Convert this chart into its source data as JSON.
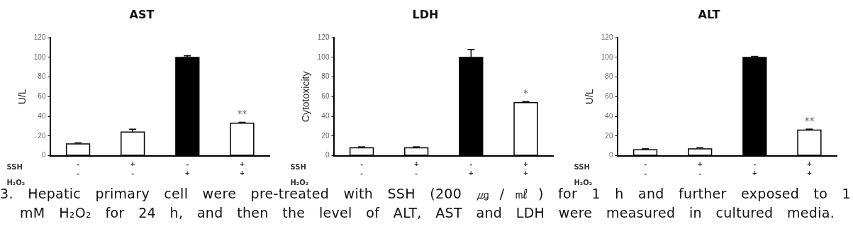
{
  "chart_data": [
    {
      "type": "bar",
      "title": "AST",
      "ylabel": "U/L",
      "categories": [
        "-\n-",
        "+\n-",
        "-\n+",
        "+\n+"
      ],
      "values": [
        12,
        24,
        100,
        33
      ],
      "errors": [
        [
          12,
          13
        ],
        [
          24,
          27
        ],
        [
          100,
          101.5
        ],
        [
          33,
          34
        ]
      ],
      "colors": [
        "#ffffff",
        "#ffffff",
        "#000000",
        "#ffffff"
      ],
      "ylim": [
        0,
        120
      ],
      "yticks": [
        0,
        20,
        40,
        60,
        80,
        100,
        120
      ],
      "grid": false,
      "legend": false,
      "annotations": [
        "SSH",
        "H₂O₂",
        {
          "text": "**",
          "x": "+\n+",
          "y": 33
        }
      ]
    },
    {
      "type": "bar",
      "title": "LDH",
      "ylabel": "Cytotoxicity",
      "categories": [
        "-\n-",
        "+\n-",
        "-\n+",
        "+\n+"
      ],
      "values": [
        8,
        8,
        100,
        54
      ],
      "errors": [
        [
          8,
          9
        ],
        [
          8,
          9
        ],
        [
          100,
          108
        ],
        [
          54,
          55
        ]
      ],
      "colors": [
        "#ffffff",
        "#ffffff",
        "#000000",
        "#ffffff"
      ],
      "ylim": [
        0,
        120
      ],
      "yticks": [
        0,
        20,
        40,
        60,
        80,
        100,
        120
      ],
      "grid": false,
      "legend": false,
      "annotations": [
        "SSH",
        "H₂O₂",
        {
          "text": "*",
          "x": "+\n+",
          "y": 54
        }
      ]
    },
    {
      "type": "bar",
      "title": "ALT",
      "ylabel": "U/L",
      "categories": [
        "-\n-",
        "+\n-",
        "-\n+",
        "+\n+"
      ],
      "values": [
        6,
        7,
        100,
        26
      ],
      "errors": [
        [
          6,
          7
        ],
        [
          7,
          8
        ],
        [
          100,
          101
        ],
        [
          26,
          27
        ]
      ],
      "colors": [
        "#ffffff",
        "#ffffff",
        "#000000",
        "#ffffff"
      ],
      "ylim": [
        0,
        120
      ],
      "yticks": [
        0,
        20,
        40,
        60,
        80,
        100,
        120
      ],
      "grid": false,
      "legend": false,
      "annotations": [
        "SSH",
        "H₂O₂",
        {
          "text": "**",
          "x": "+\n+",
          "y": 26
        }
      ]
    },
    {
      "type": "other",
      "annotations": [
        "3. Hepatic primary cell were pre-treated with SSH (200 ㎍/㎖) for 1 h and further exposed to 1",
        "mM H₂O₂ for 24 h, and then the level of ALT, AST and LDH were measured in cultured media."
      ]
    }
  ]
}
